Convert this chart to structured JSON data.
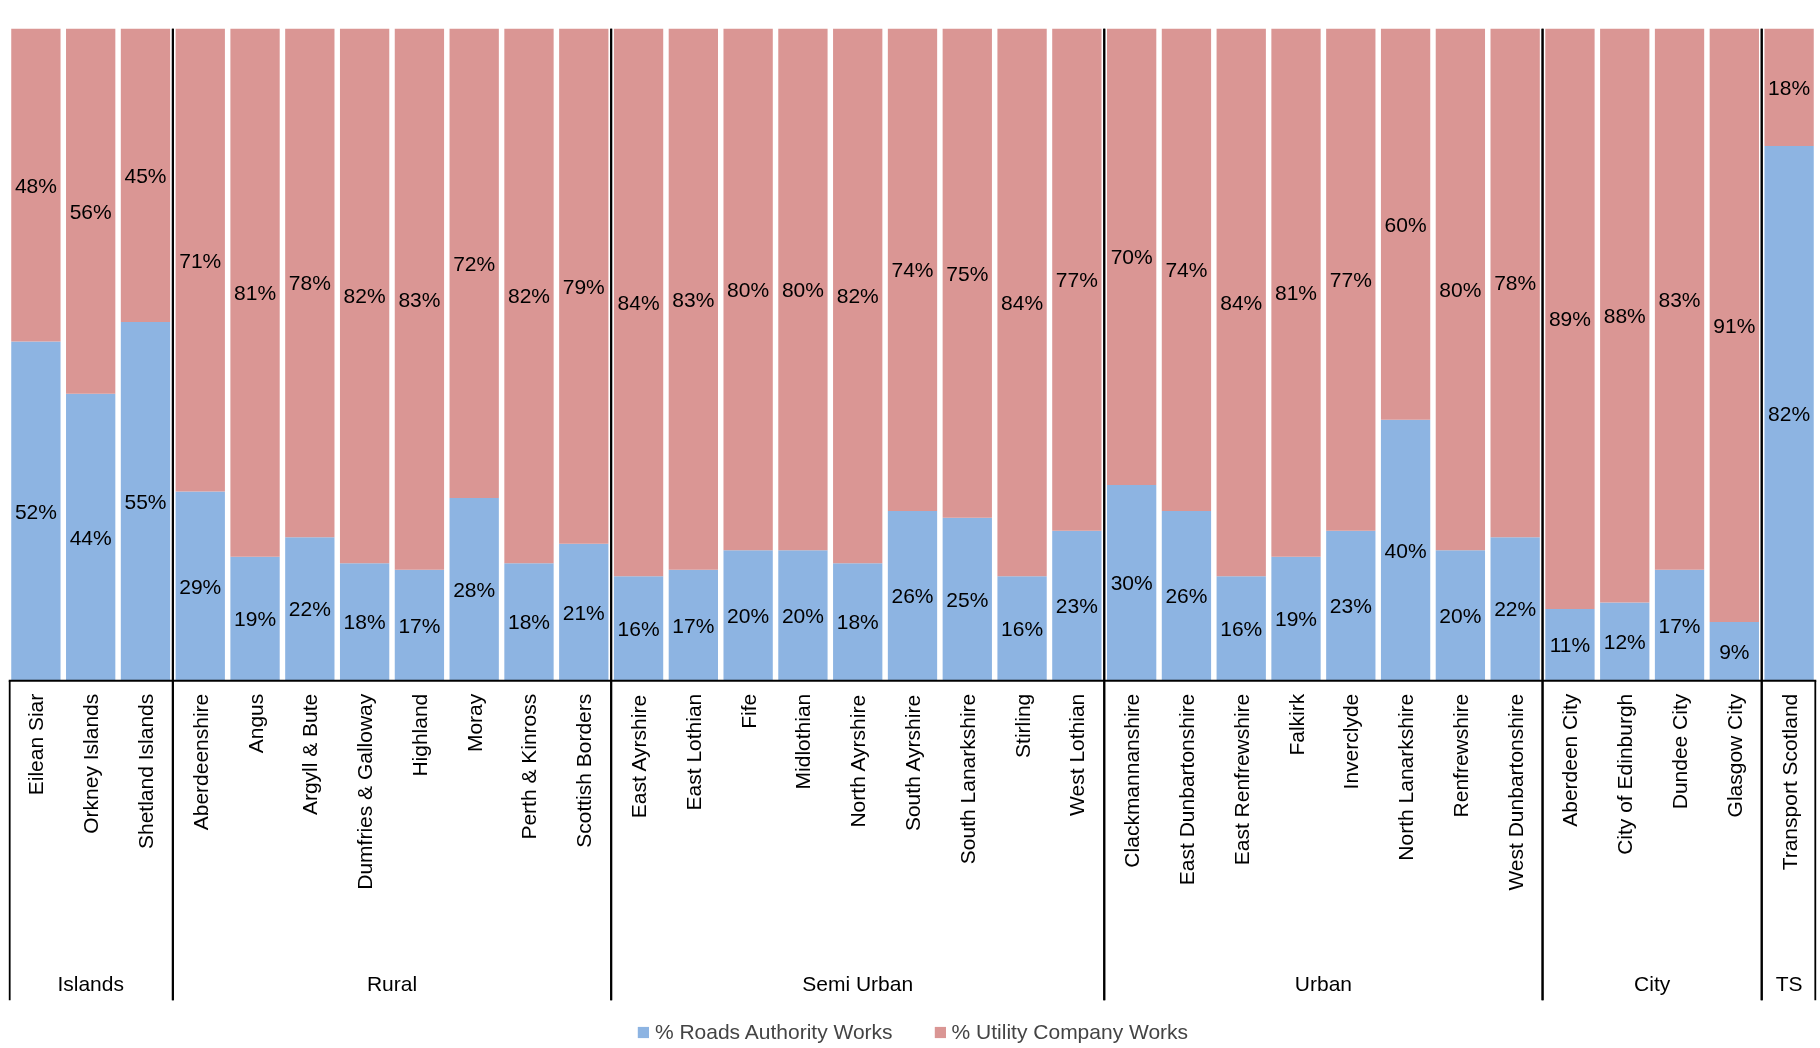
{
  "chart_data": [
    {
      "type": "bar",
      "stacked": true,
      "xlabel": "Islands",
      "legend": "bottom",
      "categories": [
        "Eilean Siar",
        "Orkney Islands",
        "Shetland Islands"
      ],
      "series": [
        {
          "name": "% Roads Authority Works",
          "color": "#8db4e2",
          "values": [
            52,
            44,
            55
          ],
          "value_labels": [
            "52%",
            "44%",
            "55%"
          ]
        },
        {
          "name": "% Utility Company Works",
          "color": "#da9694",
          "values": [
            48,
            56,
            45
          ],
          "value_labels": [
            "48%",
            "56%",
            "45%"
          ]
        }
      ]
    },
    {
      "type": "bar",
      "stacked": true,
      "xlabel": "Rural",
      "legend": "bottom",
      "categories": [
        "Aberdeenshire",
        "Angus",
        "Argyll & Bute",
        "Dumfries & Galloway",
        "Highland",
        "Moray",
        "Perth & Kinross",
        "Scottish Borders"
      ],
      "series": [
        {
          "name": "% Roads Authority Works",
          "color": "#8db4e2",
          "values": [
            29,
            19,
            22,
            18,
            17,
            28,
            18,
            21
          ],
          "value_labels": [
            "29%",
            "19%",
            "22%",
            "18%",
            "17%",
            "28%",
            "18%",
            "21%"
          ]
        },
        {
          "name": "% Utility Company Works",
          "color": "#da9694",
          "values": [
            71,
            81,
            78,
            82,
            83,
            72,
            82,
            79
          ],
          "value_labels": [
            "71%",
            "81%",
            "78%",
            "82%",
            "83%",
            "72%",
            "82%",
            "79%"
          ]
        }
      ]
    },
    {
      "type": "bar",
      "stacked": true,
      "xlabel": "Semi Urban",
      "legend": "bottom",
      "categories": [
        "East Ayrshire",
        "East Lothian",
        "Fife",
        "Midlothian",
        "North Ayrshire",
        "South Ayrshire",
        "South Lanarkshire",
        "Stirling",
        "West Lothian"
      ],
      "series": [
        {
          "name": "% Roads Authority Works",
          "color": "#8db4e2",
          "values": [
            16,
            17,
            20,
            20,
            18,
            26,
            25,
            16,
            23
          ],
          "value_labels": [
            "16%",
            "17%",
            "20%",
            "20%",
            "18%",
            "26%",
            "25%",
            "16%",
            "23%"
          ]
        },
        {
          "name": "% Utility Company Works",
          "color": "#da9694",
          "values": [
            84,
            83,
            80,
            80,
            82,
            74,
            75,
            84,
            77
          ],
          "value_labels": [
            "84%",
            "83%",
            "80%",
            "80%",
            "82%",
            "74%",
            "75%",
            "84%",
            "77%"
          ]
        }
      ]
    },
    {
      "type": "bar",
      "stacked": true,
      "xlabel": "Urban",
      "legend": "bottom",
      "categories": [
        "Clackmannanshire",
        "East Dunbartonshire",
        "East Renfrewshire",
        "Falkirk",
        "Inverclyde",
        "North Lanarkshire",
        "Renfrewshire",
        "West Dunbartonshire"
      ],
      "series": [
        {
          "name": "% Roads Authority Works",
          "color": "#8db4e2",
          "values": [
            30,
            26,
            16,
            19,
            23,
            40,
            20,
            22
          ],
          "value_labels": [
            "30%",
            "26%",
            "16%",
            "19%",
            "23%",
            "40%",
            "20%",
            "22%"
          ]
        },
        {
          "name": "% Utility Company Works",
          "color": "#da9694",
          "values": [
            70,
            74,
            84,
            81,
            77,
            60,
            80,
            78
          ],
          "value_labels": [
            "70%",
            "74%",
            "84%",
            "81%",
            "77%",
            "60%",
            "80%",
            "78%"
          ]
        }
      ]
    },
    {
      "type": "bar",
      "stacked": true,
      "xlabel": "City",
      "legend": "bottom",
      "categories": [
        "Aberdeen City",
        "City of Edinburgh",
        "Dundee City",
        "Glasgow City"
      ],
      "series": [
        {
          "name": "% Roads Authority Works",
          "color": "#8db4e2",
          "values": [
            11,
            12,
            17,
            9
          ],
          "value_labels": [
            "11%",
            "12%",
            "17%",
            "9%"
          ]
        },
        {
          "name": "% Utility Company Works",
          "color": "#da9694",
          "values": [
            89,
            88,
            83,
            91
          ],
          "value_labels": [
            "89%",
            "88%",
            "83%",
            "91%"
          ]
        }
      ]
    },
    {
      "type": "bar",
      "stacked": true,
      "xlabel": "TS",
      "legend": "bottom",
      "categories": [
        "Transport Scotland"
      ],
      "series": [
        {
          "name": "% Roads Authority Works",
          "color": "#8db4e2",
          "values": [
            82
          ],
          "value_labels": [
            "82%"
          ]
        },
        {
          "name": "% Utility Company Works",
          "color": "#da9694",
          "values": [
            18
          ],
          "value_labels": [
            "18%"
          ]
        }
      ]
    }
  ]
}
